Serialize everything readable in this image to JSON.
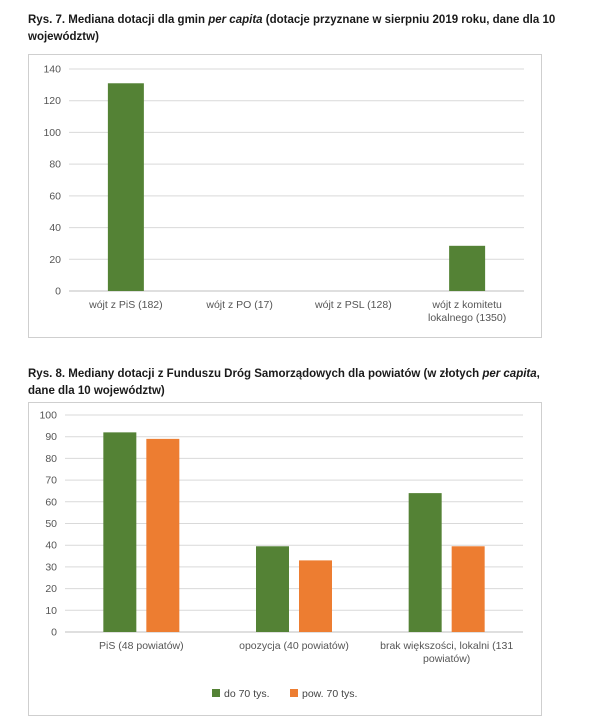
{
  "figure7": {
    "caption_prefix": "Rys. 7. Mediana dotacji dla gmin ",
    "caption_italic": "per capita",
    "caption_suffix": " (dotacje przyznane w sierpniu 2019 roku, dane dla 10 województw)"
  },
  "figure8": {
    "caption_prefix": "Rys. 8. Mediany dotacji z Funduszu Dróg Samorządowych dla powiatów (w złotych ",
    "caption_italic": "per capita",
    "caption_suffix": ", dane dla 10 województw)"
  },
  "colors": {
    "green": "#548235",
    "orange": "#ed7d31",
    "grid": "#d9d9d9",
    "axis": "#bfbfbf"
  },
  "chart_data": [
    {
      "type": "bar",
      "title": "",
      "categories": [
        [
          "wójt z PiS (182)"
        ],
        [
          "wójt z PO (17)"
        ],
        [
          "wójt z PSL (128)"
        ],
        [
          "wójt z komitetu",
          "lokalnego (1350)"
        ]
      ],
      "values": [
        131,
        0,
        0,
        28.5
      ],
      "ylim": [
        0,
        140
      ],
      "yticks": [
        0,
        20,
        40,
        60,
        80,
        100,
        120,
        140
      ],
      "grid": true,
      "legend": "none"
    },
    {
      "type": "bar",
      "title": "",
      "categories": [
        [
          "PiS (48 powiatów)"
        ],
        [
          "opozycja (40 powiatów)"
        ],
        [
          "brak większości, lokalni (131",
          "powiatów)"
        ]
      ],
      "series": [
        {
          "name": "do 70 tys.",
          "values": [
            92,
            39.5,
            64
          ]
        },
        {
          "name": "pow. 70 tys.",
          "values": [
            89,
            33,
            39.5
          ]
        }
      ],
      "ylim": [
        0,
        100
      ],
      "yticks": [
        0,
        10,
        20,
        30,
        40,
        50,
        60,
        70,
        80,
        90,
        100
      ],
      "grid": true,
      "legend": "bottom"
    }
  ]
}
